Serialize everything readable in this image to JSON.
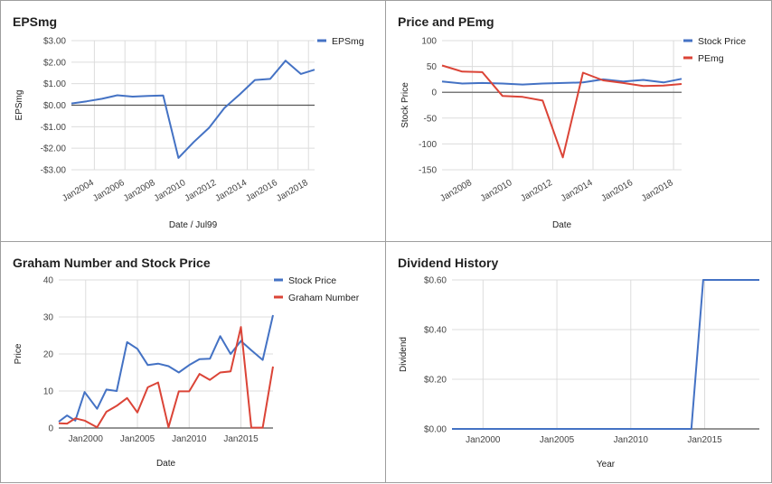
{
  "charts": [
    {
      "type": "line",
      "title": "EPSmg",
      "xlabel": "Date / Jul99",
      "ylabel": "EPSmg",
      "xlim": [
        2002.5,
        2018.4
      ],
      "ylim": [
        -3,
        3
      ],
      "y_ticks": [
        3,
        2,
        1,
        0,
        -1,
        -2,
        -3
      ],
      "y_tick_labels": [
        "$3.00",
        "$2.00",
        "$1.00",
        "$0.00",
        "-$1.00",
        "-$2.00",
        "-$3.00"
      ],
      "x_ticks": [
        2004,
        2006,
        2008,
        2010,
        2012,
        2014,
        2016,
        2018
      ],
      "x_tick_labels": [
        "Jan2004",
        "Jan2006",
        "Jan2008",
        "Jan2010",
        "Jan2012",
        "Jan2014",
        "Jan2016",
        "Jan2018"
      ],
      "x_rotate": true,
      "baseline": 0,
      "legend": "right",
      "series": [
        {
          "name": "EPSmg",
          "color": "#4472c4",
          "x": [
            2002.5,
            2003.5,
            2004.5,
            2005.5,
            2006.5,
            2007.5,
            2008.5,
            2009.5,
            2010.5,
            2011.5,
            2012.5,
            2013.5,
            2014.5,
            2015.5,
            2016.5,
            2017.5,
            2018.4
          ],
          "y": [
            0.08,
            0.18,
            0.3,
            0.46,
            0.4,
            0.43,
            0.45,
            -2.45,
            -1.71,
            -1.05,
            -0.13,
            0.5,
            1.17,
            1.22,
            2.07,
            1.45,
            1.65
          ]
        }
      ]
    },
    {
      "type": "line",
      "title": "Price and PEmg",
      "xlabel": "Date",
      "ylabel": "Stock Price",
      "xlim": [
        2006.5,
        2018.4
      ],
      "ylim": [
        -150,
        100
      ],
      "y_ticks": [
        100,
        50,
        0,
        -50,
        -100,
        -150
      ],
      "y_tick_labels": [
        "100",
        "50",
        "0",
        "-50",
        "-100",
        "-150"
      ],
      "x_ticks": [
        2008,
        2010,
        2012,
        2014,
        2016,
        2018
      ],
      "x_tick_labels": [
        "Jan2008",
        "Jan2010",
        "Jan2012",
        "Jan2014",
        "Jan2016",
        "Jan2018"
      ],
      "x_rotate": true,
      "baseline": 0,
      "legend": "right",
      "series": [
        {
          "name": "Stock Price",
          "color": "#4472c4",
          "x": [
            2006.5,
            2007.5,
            2008.5,
            2009.5,
            2010.5,
            2011.5,
            2012.5,
            2013.5,
            2014.5,
            2015.5,
            2016.5,
            2017.5,
            2018.4
          ],
          "y": [
            21,
            17,
            18,
            17,
            15,
            17,
            18,
            19,
            25,
            21,
            24,
            19,
            26
          ]
        },
        {
          "name": "PEmg",
          "color": "#db4437",
          "x": [
            2006.5,
            2007.5,
            2008.5,
            2009.5,
            2010.5,
            2011.5,
            2012.5,
            2013.5,
            2014.5,
            2015.5,
            2016.5,
            2017.5,
            2018.4
          ],
          "y": [
            52,
            40,
            39,
            -7,
            -9,
            -16,
            -126,
            38,
            23,
            18,
            12,
            13,
            16
          ]
        }
      ]
    },
    {
      "type": "line",
      "title": "Graham Number and Stock Price",
      "xlabel": "Date",
      "ylabel": "Price",
      "xlim": [
        1997.4,
        2018.1
      ],
      "ylim": [
        0,
        40
      ],
      "y_ticks": [
        40,
        30,
        20,
        10,
        0
      ],
      "y_tick_labels": [
        "40",
        "30",
        "20",
        "10",
        "0"
      ],
      "x_ticks": [
        2000,
        2005,
        2010,
        2015
      ],
      "x_tick_labels": [
        "Jan2000",
        "Jan2005",
        "Jan2010",
        "Jan2015"
      ],
      "x_rotate": false,
      "legend": "right",
      "series": [
        {
          "name": "Stock Price",
          "color": "#4472c4",
          "x": [
            1997.4,
            1998.2,
            1999,
            1999.9,
            2001.1,
            2002,
            2003,
            2004,
            2005,
            2006,
            2007,
            2008,
            2009,
            2010,
            2011,
            2012,
            2013,
            2014,
            2015,
            2016,
            2017.1,
            2018.1
          ],
          "y": [
            1.7,
            3.4,
            2,
            9.7,
            5.2,
            10.4,
            10,
            23.2,
            21.4,
            17,
            17.4,
            16.7,
            15,
            17,
            18.6,
            18.7,
            24.8,
            20,
            23.5,
            21,
            18.4,
            30.5
          ]
        },
        {
          "name": "Graham Number",
          "color": "#db4437",
          "x": [
            1997.4,
            1998.2,
            1999,
            1999.9,
            2001.1,
            2002,
            2003,
            2004,
            2005,
            2006,
            2007,
            2008,
            2009,
            2010,
            2011,
            2012,
            2013,
            2014,
            2015,
            2016,
            2017.1,
            2018.1
          ],
          "y": [
            1.3,
            1.2,
            2.6,
            2,
            0.2,
            4.4,
            6,
            8.1,
            4.2,
            11,
            12.3,
            0.2,
            9.9,
            9.9,
            14.6,
            13,
            15,
            15.3,
            27.3,
            0.1,
            0.1,
            16.6
          ]
        }
      ]
    },
    {
      "type": "line",
      "title": "Dividend History",
      "xlabel": "Year",
      "ylabel": "Dividend",
      "xlim": [
        1997.9,
        2018.7
      ],
      "ylim": [
        0,
        0.6
      ],
      "y_ticks": [
        0.6,
        0.4,
        0.2,
        0
      ],
      "y_tick_labels": [
        "$0.60",
        "$0.40",
        "$0.20",
        "$0.00"
      ],
      "x_ticks": [
        2000,
        2005,
        2010,
        2015
      ],
      "x_tick_labels": [
        "Jan2000",
        "Jan2005",
        "Jan2010",
        "Jan2015"
      ],
      "x_rotate": false,
      "legend": "none",
      "series": [
        {
          "name": "",
          "color": "#4472c4",
          "x": [
            1997.9,
            2014.1,
            2014.9,
            2018.7
          ],
          "y": [
            0,
            0,
            0.6,
            0.6
          ]
        }
      ]
    }
  ]
}
